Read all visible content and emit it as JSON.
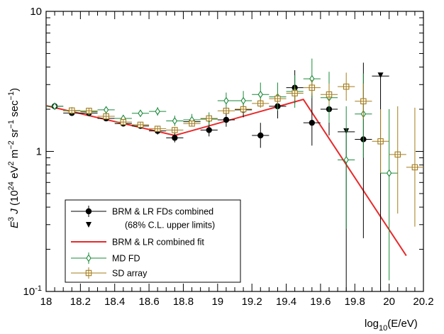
{
  "chart_data": {
    "type": "scatter",
    "x_axis": {
      "range": [
        18,
        20.2
      ],
      "ticks": [
        18,
        18.2,
        18.4,
        18.6,
        18.8,
        19,
        19.2,
        19.4,
        19.6,
        19.8,
        20,
        20.2
      ],
      "tick_labels": [
        "18",
        "18.2",
        "18.4",
        "18.6",
        "18.8",
        "19",
        "19.2",
        "19.4",
        "19.6",
        "19.8",
        "20",
        "20.2"
      ],
      "label_pre": "log",
      "label_sub": "10",
      "label_post": "(E/eV)"
    },
    "y_axis": {
      "scale": "log",
      "range": [
        0.1,
        10
      ],
      "label": "E³ J (10²⁴ eV² m⁻² sr⁻¹ sec⁻¹)",
      "label_main": "J (10",
      "label_pre": "E",
      "tick_labels": [
        "10⁻¹",
        "1",
        "10"
      ]
    },
    "grid": false,
    "legend_position": "bottom-left",
    "colors": {
      "brm_lr": "#000000",
      "fit": "#e8292a",
      "md": "#1a8a3a",
      "sd": "#a57c1b"
    },
    "series": [
      {
        "name": "BRM & LR FDs combined",
        "marker": "filled-circle",
        "color": "#000000",
        "points": [
          {
            "x": 18.05,
            "y": 2.1,
            "lo": 2.05,
            "hi": 2.15
          },
          {
            "x": 18.15,
            "y": 1.88,
            "lo": 1.82,
            "hi": 1.94
          },
          {
            "x": 18.25,
            "y": 1.88,
            "lo": 1.81,
            "hi": 1.95
          },
          {
            "x": 18.35,
            "y": 1.72,
            "lo": 1.65,
            "hi": 1.79
          },
          {
            "x": 18.45,
            "y": 1.58,
            "lo": 1.51,
            "hi": 1.65
          },
          {
            "x": 18.55,
            "y": 1.52,
            "lo": 1.45,
            "hi": 1.6
          },
          {
            "x": 18.65,
            "y": 1.4,
            "lo": 1.32,
            "hi": 1.49
          },
          {
            "x": 18.75,
            "y": 1.25,
            "lo": 1.16,
            "hi": 1.35
          },
          {
            "x": 18.85,
            "y": 1.63,
            "lo": 1.51,
            "hi": 1.76
          },
          {
            "x": 18.95,
            "y": 1.42,
            "lo": 1.28,
            "hi": 1.58
          },
          {
            "x": 19.05,
            "y": 1.68,
            "lo": 1.5,
            "hi": 1.88
          },
          {
            "x": 19.15,
            "y": 1.98,
            "lo": 1.75,
            "hi": 2.25
          },
          {
            "x": 19.25,
            "y": 1.3,
            "lo": 1.06,
            "hi": 1.6
          },
          {
            "x": 19.35,
            "y": 2.1,
            "lo": 1.72,
            "hi": 2.55
          },
          {
            "x": 19.45,
            "y": 2.85,
            "lo": 2.2,
            "hi": 3.8
          },
          {
            "x": 19.55,
            "y": 1.6,
            "lo": 1.1,
            "hi": 2.6
          },
          {
            "x": 19.65,
            "y": 2.0,
            "lo": 1.3,
            "hi": 3.3
          },
          {
            "x": 19.85,
            "y": 1.22,
            "lo": 0.24,
            "hi": 4.3
          }
        ]
      },
      {
        "name": "(68% C.L. upper limits)",
        "marker": "down-triangle",
        "color": "#000000",
        "points": [
          {
            "x": 19.75,
            "y": 1.38,
            "lo": 0.1
          },
          {
            "x": 19.95,
            "y": 3.45,
            "lo": 0.1
          }
        ]
      },
      {
        "name": "BRM & LR combined fit",
        "marker": "line",
        "color": "#e8292a",
        "points": [
          {
            "x": 18.0,
            "y": 2.12
          },
          {
            "x": 18.75,
            "y": 1.3
          },
          {
            "x": 19.5,
            "y": 2.35
          },
          {
            "x": 20.1,
            "y": 0.18
          }
        ]
      },
      {
        "name": "MD FD",
        "marker": "open-diamond",
        "color": "#1a8a3a",
        "points": [
          {
            "x": 18.05,
            "y": 2.1,
            "lo": 2.04,
            "hi": 2.16
          },
          {
            "x": 18.15,
            "y": 1.95,
            "lo": 1.88,
            "hi": 2.02
          },
          {
            "x": 18.25,
            "y": 1.92,
            "lo": 1.84,
            "hi": 2.0
          },
          {
            "x": 18.35,
            "y": 1.98,
            "lo": 1.89,
            "hi": 2.08
          },
          {
            "x": 18.45,
            "y": 1.72,
            "lo": 1.63,
            "hi": 1.82
          },
          {
            "x": 18.55,
            "y": 1.87,
            "lo": 1.76,
            "hi": 1.98
          },
          {
            "x": 18.65,
            "y": 1.93,
            "lo": 1.8,
            "hi": 2.07
          },
          {
            "x": 18.75,
            "y": 1.65,
            "lo": 1.52,
            "hi": 1.8
          },
          {
            "x": 18.85,
            "y": 1.68,
            "lo": 1.53,
            "hi": 1.85
          },
          {
            "x": 18.95,
            "y": 1.7,
            "lo": 1.53,
            "hi": 1.9
          },
          {
            "x": 19.05,
            "y": 2.3,
            "lo": 2.0,
            "hi": 2.63
          },
          {
            "x": 19.15,
            "y": 2.3,
            "lo": 1.95,
            "hi": 2.7
          },
          {
            "x": 19.25,
            "y": 2.55,
            "lo": 2.1,
            "hi": 3.1
          },
          {
            "x": 19.35,
            "y": 2.45,
            "lo": 1.95,
            "hi": 3.1
          },
          {
            "x": 19.45,
            "y": 2.68,
            "lo": 2.05,
            "hi": 3.5
          },
          {
            "x": 19.55,
            "y": 3.3,
            "lo": 2.4,
            "hi": 4.6
          },
          {
            "x": 19.65,
            "y": 2.42,
            "lo": 1.6,
            "hi": 3.7
          },
          {
            "x": 19.75,
            "y": 0.87,
            "lo": 0.28,
            "hi": 2.1
          },
          {
            "x": 19.85,
            "y": 1.85,
            "lo": 0.9,
            "hi": 3.6
          },
          {
            "x": 20.0,
            "y": 0.7,
            "lo": 0.12,
            "hi": 2.0
          }
        ]
      },
      {
        "name": "SD array",
        "marker": "open-square-cross",
        "color": "#a57c1b",
        "points": [
          {
            "x": 18.15,
            "y": 1.96,
            "lo": 1.91,
            "hi": 2.01
          },
          {
            "x": 18.25,
            "y": 1.95,
            "lo": 1.9,
            "hi": 2.0
          },
          {
            "x": 18.35,
            "y": 1.78,
            "lo": 1.73,
            "hi": 1.83
          },
          {
            "x": 18.45,
            "y": 1.62,
            "lo": 1.57,
            "hi": 1.67
          },
          {
            "x": 18.55,
            "y": 1.55,
            "lo": 1.5,
            "hi": 1.6
          },
          {
            "x": 18.65,
            "y": 1.45,
            "lo": 1.4,
            "hi": 1.5
          },
          {
            "x": 18.75,
            "y": 1.42,
            "lo": 1.37,
            "hi": 1.47
          },
          {
            "x": 18.85,
            "y": 1.58,
            "lo": 1.52,
            "hi": 1.64
          },
          {
            "x": 18.95,
            "y": 1.72,
            "lo": 1.65,
            "hi": 1.8
          },
          {
            "x": 19.05,
            "y": 1.95,
            "lo": 1.85,
            "hi": 2.06
          },
          {
            "x": 19.15,
            "y": 2.0,
            "lo": 1.88,
            "hi": 2.13
          },
          {
            "x": 19.25,
            "y": 2.2,
            "lo": 2.05,
            "hi": 2.37
          },
          {
            "x": 19.35,
            "y": 2.38,
            "lo": 2.18,
            "hi": 2.6
          },
          {
            "x": 19.45,
            "y": 2.6,
            "lo": 2.33,
            "hi": 2.9
          },
          {
            "x": 19.55,
            "y": 2.85,
            "lo": 2.5,
            "hi": 3.25
          },
          {
            "x": 19.65,
            "y": 2.55,
            "lo": 2.15,
            "hi": 3.05
          },
          {
            "x": 19.75,
            "y": 2.9,
            "lo": 2.3,
            "hi": 3.65
          },
          {
            "x": 19.85,
            "y": 2.28,
            "lo": 1.7,
            "hi": 3.05
          },
          {
            "x": 19.95,
            "y": 1.18,
            "lo": 0.7,
            "hi": 2.0
          },
          {
            "x": 20.05,
            "y": 0.95,
            "lo": 0.36,
            "hi": 2.1
          },
          {
            "x": 20.15,
            "y": 0.77,
            "lo": 0.29,
            "hi": 2.05
          }
        ]
      }
    ]
  }
}
